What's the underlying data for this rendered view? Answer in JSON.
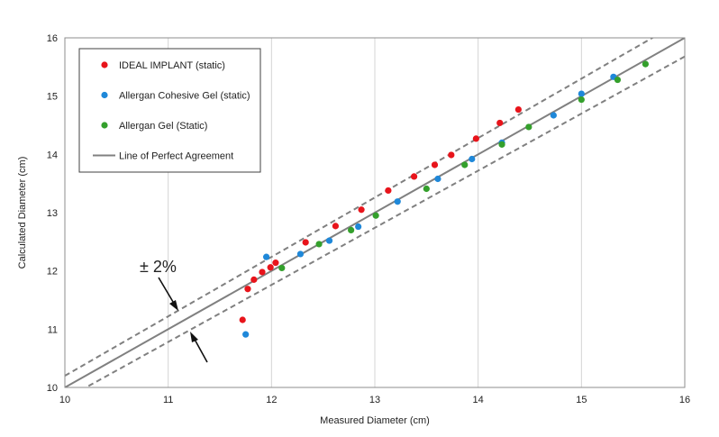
{
  "chart_data": {
    "type": "scatter",
    "xlabel": "Measured Diameter (cm)",
    "ylabel": "Calculated Diameter (cm)",
    "xlim": [
      10,
      16
    ],
    "ylim": [
      10,
      16
    ],
    "xticks": [
      10,
      11,
      12,
      13,
      14,
      15,
      16
    ],
    "yticks": [
      10,
      11,
      12,
      13,
      14,
      15,
      16
    ],
    "grid": "vertical",
    "legend_position": "top-left",
    "series": [
      {
        "name": "IDEAL IMPLANT (static)",
        "kind": "points",
        "color": "#e8141b",
        "points": [
          [
            11.72,
            11.16
          ],
          [
            11.77,
            11.69
          ],
          [
            11.83,
            11.85
          ],
          [
            11.91,
            11.98
          ],
          [
            11.99,
            12.06
          ],
          [
            12.04,
            12.14
          ],
          [
            12.33,
            12.49
          ],
          [
            12.62,
            12.77
          ],
          [
            12.87,
            13.05
          ],
          [
            13.13,
            13.38
          ],
          [
            13.38,
            13.62
          ],
          [
            13.58,
            13.82
          ],
          [
            13.74,
            13.99
          ],
          [
            13.98,
            14.27
          ],
          [
            14.21,
            14.54
          ],
          [
            14.39,
            14.77
          ]
        ]
      },
      {
        "name": "Allergan Cohesive Gel (static)",
        "kind": "points",
        "color": "#1f88d9",
        "points": [
          [
            11.75,
            10.91
          ],
          [
            11.95,
            12.24
          ],
          [
            12.28,
            12.29
          ],
          [
            12.56,
            12.52
          ],
          [
            12.84,
            12.76
          ],
          [
            13.22,
            13.19
          ],
          [
            13.61,
            13.58
          ],
          [
            13.94,
            13.92
          ],
          [
            14.23,
            14.2
          ],
          [
            14.73,
            14.67
          ],
          [
            15.0,
            15.04
          ],
          [
            15.31,
            15.33
          ]
        ]
      },
      {
        "name": "Allergan Gel (Static)",
        "kind": "points",
        "color": "#34a02c",
        "points": [
          [
            12.1,
            12.05
          ],
          [
            12.46,
            12.46
          ],
          [
            12.77,
            12.7
          ],
          [
            13.01,
            12.95
          ],
          [
            13.5,
            13.41
          ],
          [
            13.87,
            13.82
          ],
          [
            14.23,
            14.17
          ],
          [
            14.49,
            14.47
          ],
          [
            15.0,
            14.94
          ],
          [
            15.35,
            15.28
          ],
          [
            15.62,
            15.55
          ]
        ]
      },
      {
        "name": "Line of Perfect Agreement",
        "kind": "line",
        "color": "#808080",
        "points": [
          [
            10,
            10
          ],
          [
            16,
            16
          ]
        ]
      },
      {
        "kind": "line",
        "style": "dashed",
        "color": "#808080",
        "points": [
          [
            10,
            10.2
          ],
          [
            16,
            16.32
          ]
        ]
      },
      {
        "kind": "line",
        "style": "dashed",
        "color": "#808080",
        "points": [
          [
            10,
            9.8
          ],
          [
            16,
            15.68
          ]
        ]
      }
    ],
    "annotations": [
      {
        "text": "± 2%"
      }
    ]
  }
}
